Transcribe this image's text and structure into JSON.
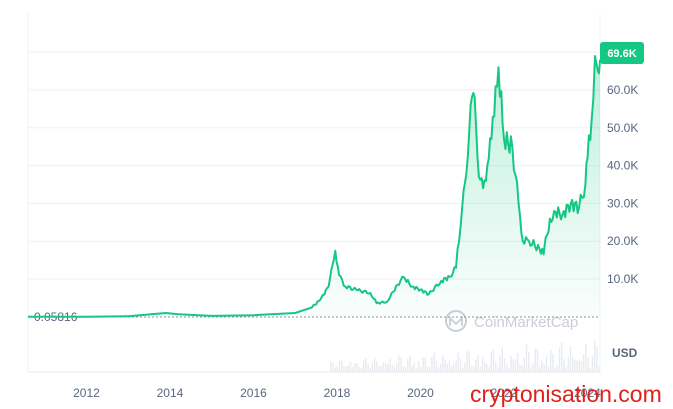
{
  "chart_data": {
    "type": "area",
    "title": "",
    "xlabel": "",
    "ylabel": "",
    "unit": "USD",
    "x_tick_labels": [
      "2012",
      "2014",
      "2016",
      "2018",
      "2020",
      "2022",
      "2024"
    ],
    "y_tick_labels": [
      "10.0K",
      "20.0K",
      "30.0K",
      "40.0K",
      "50.0K",
      "60.0K"
    ],
    "y_tick_values": [
      10000,
      20000,
      30000,
      40000,
      50000,
      60000
    ],
    "xlim": [
      2010.6,
      2024.3
    ],
    "ylim": [
      0,
      72000
    ],
    "start_price_label": "0.05816",
    "current_price_label": "69.6K",
    "series": [
      {
        "x": [
          2010.6,
          2012.0,
          2013.0,
          2013.9,
          2014.2,
          2015.0,
          2016.0,
          2017.0,
          2017.4,
          2017.6,
          2017.8,
          2017.9,
          2017.96,
          2018.05,
          2018.2,
          2018.5,
          2018.8,
          2018.95,
          2019.2,
          2019.45,
          2019.6,
          2019.8,
          2020.0,
          2020.2,
          2020.5,
          2020.7,
          2020.85,
          2021.0,
          2021.1,
          2021.2,
          2021.3,
          2021.4,
          2021.5,
          2021.6,
          2021.7,
          2021.8,
          2021.87,
          2022.0,
          2022.2,
          2022.35,
          2022.45,
          2022.6,
          2022.85,
          2022.95,
          2023.0,
          2023.2,
          2023.4,
          2023.6,
          2023.8,
          2023.95,
          2024.0,
          2024.1,
          2024.18,
          2024.25,
          2024.3
        ],
        "y": [
          0.06,
          5,
          130,
          1000,
          700,
          250,
          430,
          1000,
          2500,
          4500,
          8000,
          14000,
          17500,
          11000,
          8000,
          7000,
          6300,
          3600,
          4000,
          8500,
          10500,
          8000,
          7200,
          6000,
          9500,
          10600,
          13000,
          29000,
          38000,
          56000,
          58000,
          37000,
          34000,
          40000,
          47000,
          61000,
          66000,
          47000,
          45000,
          30000,
          20000,
          20000,
          18000,
          16500,
          21000,
          28000,
          27000,
          30000,
          29000,
          35000,
          42000,
          52000,
          69000,
          65000,
          68000
        ]
      }
    ],
    "colors": {
      "line": "#16c784",
      "badge": "#16c784",
      "fill": "#16c784"
    }
  },
  "watermark": {
    "text": "CoinMarketCap"
  },
  "site_watermark": {
    "text": "cryptonisation.com"
  }
}
